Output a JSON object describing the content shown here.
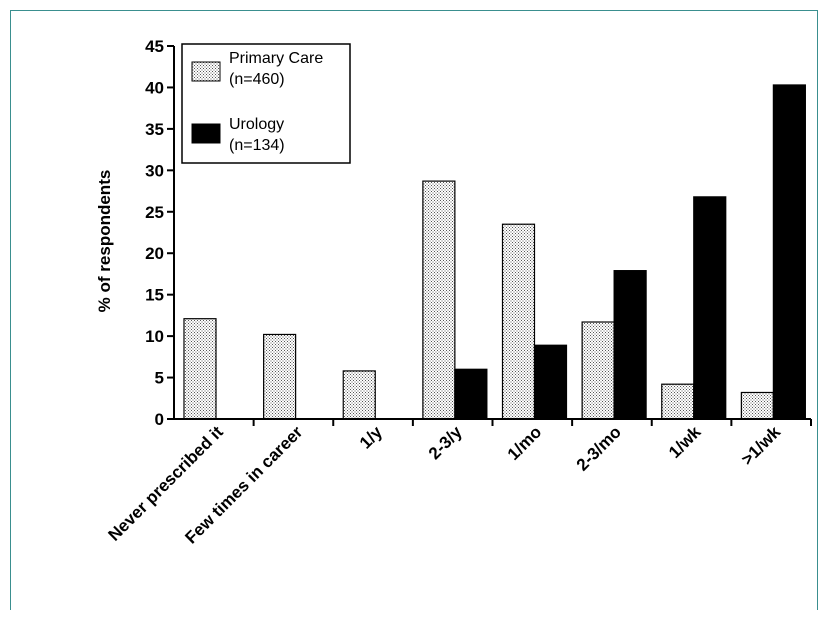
{
  "chart_data": {
    "type": "bar",
    "title": "",
    "xlabel": "",
    "ylabel": "% of respondents",
    "ylim": [
      0,
      45
    ],
    "yticks": [
      0,
      5,
      10,
      15,
      20,
      25,
      30,
      35,
      40,
      45
    ],
    "categories": [
      "Never prescribed it",
      "Few times in career",
      "1/y",
      "2-3/y",
      "1/mo",
      "2-3/mo",
      "1/wk",
      ">1/wk"
    ],
    "series": [
      {
        "name": "Primary Care",
        "legend_label": [
          "Primary Care",
          "(n=460)"
        ],
        "fill": "dotted",
        "color": "#e6e6e6",
        "values": [
          12.1,
          10.2,
          5.8,
          28.7,
          23.5,
          11.7,
          4.2,
          3.2
        ]
      },
      {
        "name": "Urology",
        "legend_label": [
          "Urology",
          "(n=134)"
        ],
        "fill": "solid",
        "color": "#000000",
        "values": [
          0,
          0,
          0,
          6.0,
          8.9,
          17.9,
          26.8,
          40.3
        ]
      }
    ],
    "legend_position": "top-left",
    "grid": false
  }
}
